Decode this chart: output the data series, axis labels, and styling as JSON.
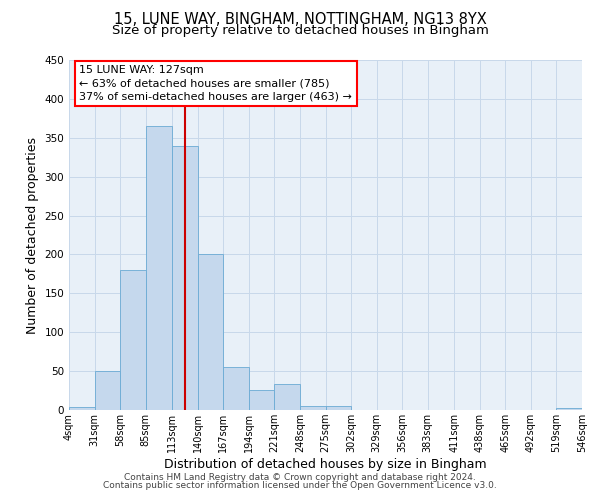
{
  "title": "15, LUNE WAY, BINGHAM, NOTTINGHAM, NG13 8YX",
  "subtitle": "Size of property relative to detached houses in Bingham",
  "xlabel": "Distribution of detached houses by size in Bingham",
  "ylabel": "Number of detached properties",
  "bin_edges": [
    4,
    31,
    58,
    85,
    113,
    140,
    167,
    194,
    221,
    248,
    275,
    302,
    329,
    356,
    383,
    411,
    438,
    465,
    492,
    519,
    546
  ],
  "bar_heights": [
    4,
    50,
    180,
    365,
    340,
    200,
    55,
    26,
    33,
    5,
    5,
    0,
    0,
    0,
    0,
    0,
    0,
    0,
    0,
    3
  ],
  "bar_facecolor": "#c5d8ed",
  "bar_edgecolor": "#6aaad4",
  "vline_x": 127,
  "vline_color": "#cc0000",
  "annotation_line1": "15 LUNE WAY: 127sqm",
  "annotation_line2": "← 63% of detached houses are smaller (785)",
  "annotation_line3": "37% of semi-detached houses are larger (463) →",
  "ylim": [
    0,
    450
  ],
  "xlim": [
    4,
    546
  ],
  "tick_labels": [
    "4sqm",
    "31sqm",
    "58sqm",
    "85sqm",
    "113sqm",
    "140sqm",
    "167sqm",
    "194sqm",
    "221sqm",
    "248sqm",
    "275sqm",
    "302sqm",
    "329sqm",
    "356sqm",
    "383sqm",
    "411sqm",
    "438sqm",
    "465sqm",
    "492sqm",
    "519sqm",
    "546sqm"
  ],
  "tick_positions": [
    4,
    31,
    58,
    85,
    113,
    140,
    167,
    194,
    221,
    248,
    275,
    302,
    329,
    356,
    383,
    411,
    438,
    465,
    492,
    519,
    546
  ],
  "ytick_positions": [
    0,
    50,
    100,
    150,
    200,
    250,
    300,
    350,
    400,
    450
  ],
  "footer_line1": "Contains HM Land Registry data © Crown copyright and database right 2024.",
  "footer_line2": "Contains public sector information licensed under the Open Government Licence v3.0.",
  "grid_color": "#c8d8ea",
  "background_color": "#e8f0f8",
  "title_fontsize": 10.5,
  "subtitle_fontsize": 9.5,
  "axis_label_fontsize": 9,
  "tick_fontsize": 7,
  "annotation_fontsize": 8,
  "footer_fontsize": 6.5
}
